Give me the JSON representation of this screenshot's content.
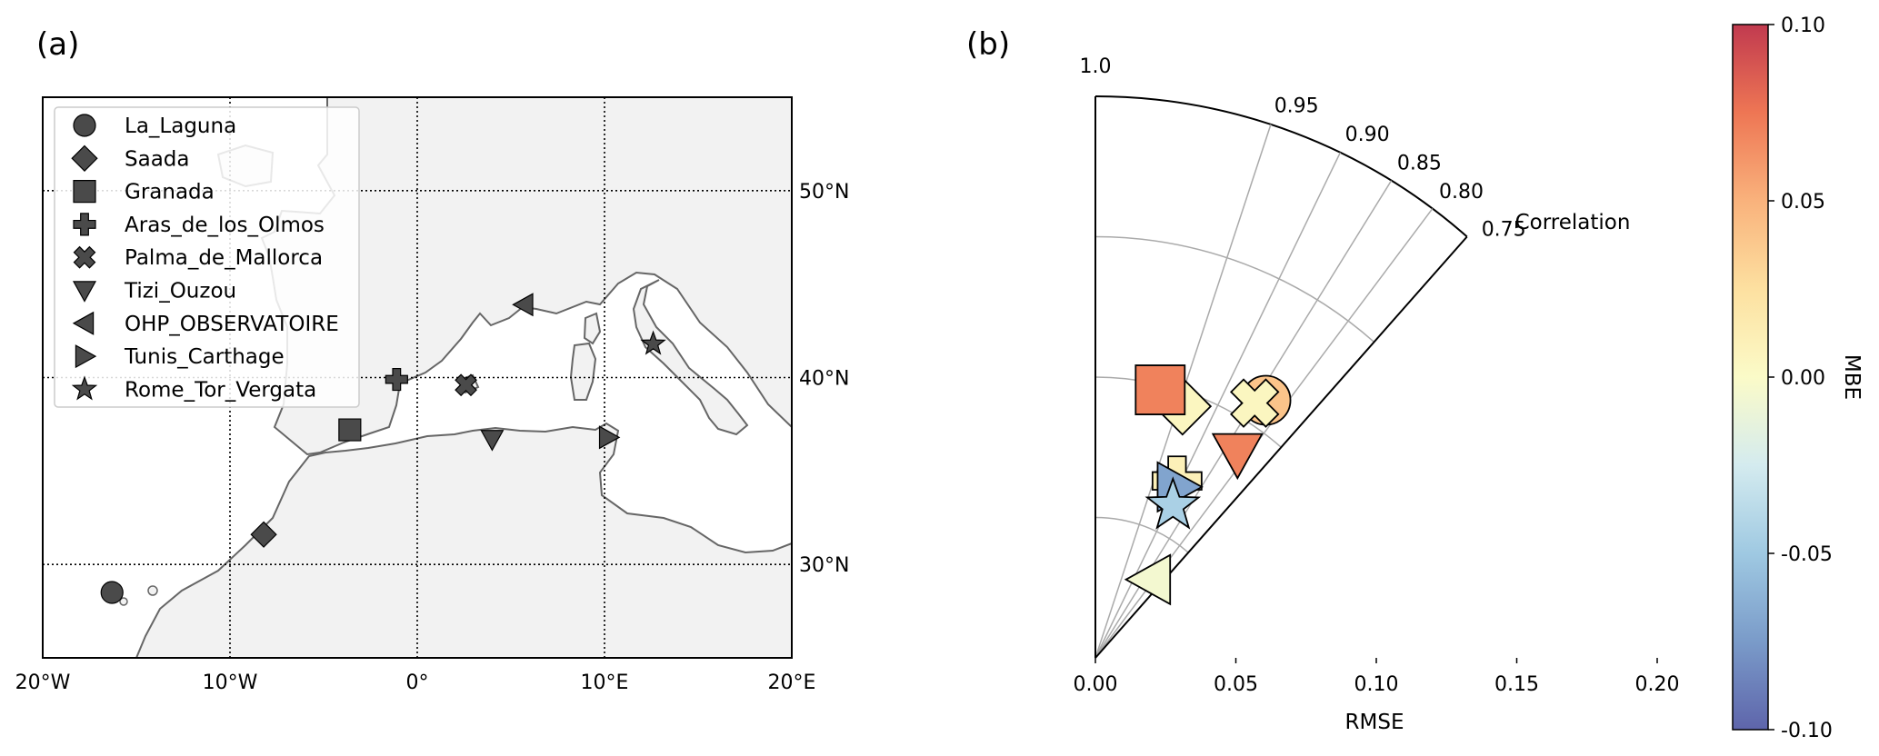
{
  "figure": {
    "panel_a_label": "(a)",
    "panel_b_label": "(b)"
  },
  "map": {
    "lon_range": [
      -20,
      20
    ],
    "lat_range": [
      25,
      55
    ],
    "lon_ticks": [
      -20,
      -10,
      0,
      10,
      20
    ],
    "lon_tick_labels": [
      "20°W",
      "10°W",
      "0°",
      "10°E",
      "20°E"
    ],
    "lat_ticks": [
      30,
      40,
      50
    ],
    "lat_tick_labels": [
      "30°N",
      "40°N",
      "50°N"
    ],
    "land_color": "#f2f2f2",
    "coast_color": "#666666",
    "marker_color": "#4a4a4a",
    "stations": [
      {
        "name": "La_Laguna",
        "marker": "circle",
        "lon": -16.3,
        "lat": 28.5
      },
      {
        "name": "Saada",
        "marker": "diamond",
        "lon": -8.2,
        "lat": 31.6
      },
      {
        "name": "Granada",
        "marker": "square",
        "lon": -3.6,
        "lat": 37.2
      },
      {
        "name": "Aras_de_los_Olmos",
        "marker": "plus",
        "lon": -1.1,
        "lat": 39.9
      },
      {
        "name": "Palma_de_Mallorca",
        "marker": "cross",
        "lon": 2.6,
        "lat": 39.6
      },
      {
        "name": "Tizi_Ouzou",
        "marker": "triangle-down",
        "lon": 4.0,
        "lat": 36.7
      },
      {
        "name": "OHP_OBSERVATOIRE",
        "marker": "triangle-left",
        "lon": 5.7,
        "lat": 43.9
      },
      {
        "name": "Tunis_Carthage",
        "marker": "triangle-right",
        "lon": 10.2,
        "lat": 36.8
      },
      {
        "name": "Rome_Tor_Vergata",
        "marker": "star",
        "lon": 12.6,
        "lat": 41.8
      }
    ]
  },
  "chart_data": {
    "type": "scatter",
    "subtype": "polar-taylor-quadrant",
    "xlabel": "RMSE",
    "rlim": [
      0,
      0.2
    ],
    "r_ticks": [
      0.0,
      0.05,
      0.1,
      0.15,
      0.2
    ],
    "r_tick_labels": [
      "0.00",
      "0.05",
      "0.10",
      "0.15",
      "0.20"
    ],
    "angle_label": "Correlation",
    "corr_ticks": [
      1.0,
      0.95,
      0.9,
      0.85,
      0.8,
      0.75
    ],
    "corr_tick_labels": [
      "1.0",
      "0.95",
      "0.90",
      "0.85",
      "0.80",
      "0.75"
    ],
    "colorbar": {
      "label": "MBE",
      "range": [
        -0.1,
        0.1
      ],
      "ticks": [
        0.1,
        0.05,
        0.0,
        -0.05,
        -0.1
      ],
      "tick_labels": [
        "0.10",
        "0.05",
        "0.00",
        "-0.05",
        "-0.10"
      ],
      "colormap": "RdYlBu_r"
    },
    "points": [
      {
        "name": "La_Laguna",
        "marker": "circle",
        "rmse": 0.11,
        "correlation": 0.834,
        "mbe": 0.04
      },
      {
        "name": "Saada",
        "marker": "diamond",
        "rmse": 0.0948,
        "correlation": 0.945,
        "mbe": 0.005
      },
      {
        "name": "Granada",
        "marker": "square",
        "rmse": 0.0982,
        "correlation": 0.972,
        "mbe": 0.07
      },
      {
        "name": "Aras_de_los_Olmos",
        "marker": "plus",
        "rmse": 0.0694,
        "correlation": 0.908,
        "mbe": 0.01
      },
      {
        "name": "Palma_de_Mallorca",
        "marker": "cross",
        "rmse": 0.107,
        "correlation": 0.848,
        "mbe": 0.005
      },
      {
        "name": "Tizi_Ouzou",
        "marker": "triangle-down",
        "rmse": 0.0886,
        "correlation": 0.821,
        "mbe": 0.07
      },
      {
        "name": "OHP_OBSERVATOIRE",
        "marker": "triangle-left",
        "rmse": 0.0341,
        "correlation": 0.818,
        "mbe": -0.005
      },
      {
        "name": "Tunis_Carthage",
        "marker": "triangle-right",
        "rmse": 0.0675,
        "correlation": 0.902,
        "mbe": -0.07
      },
      {
        "name": "Rome_Tor_Vergata",
        "marker": "star",
        "rmse": 0.0608,
        "correlation": 0.891,
        "mbe": -0.045
      }
    ]
  }
}
